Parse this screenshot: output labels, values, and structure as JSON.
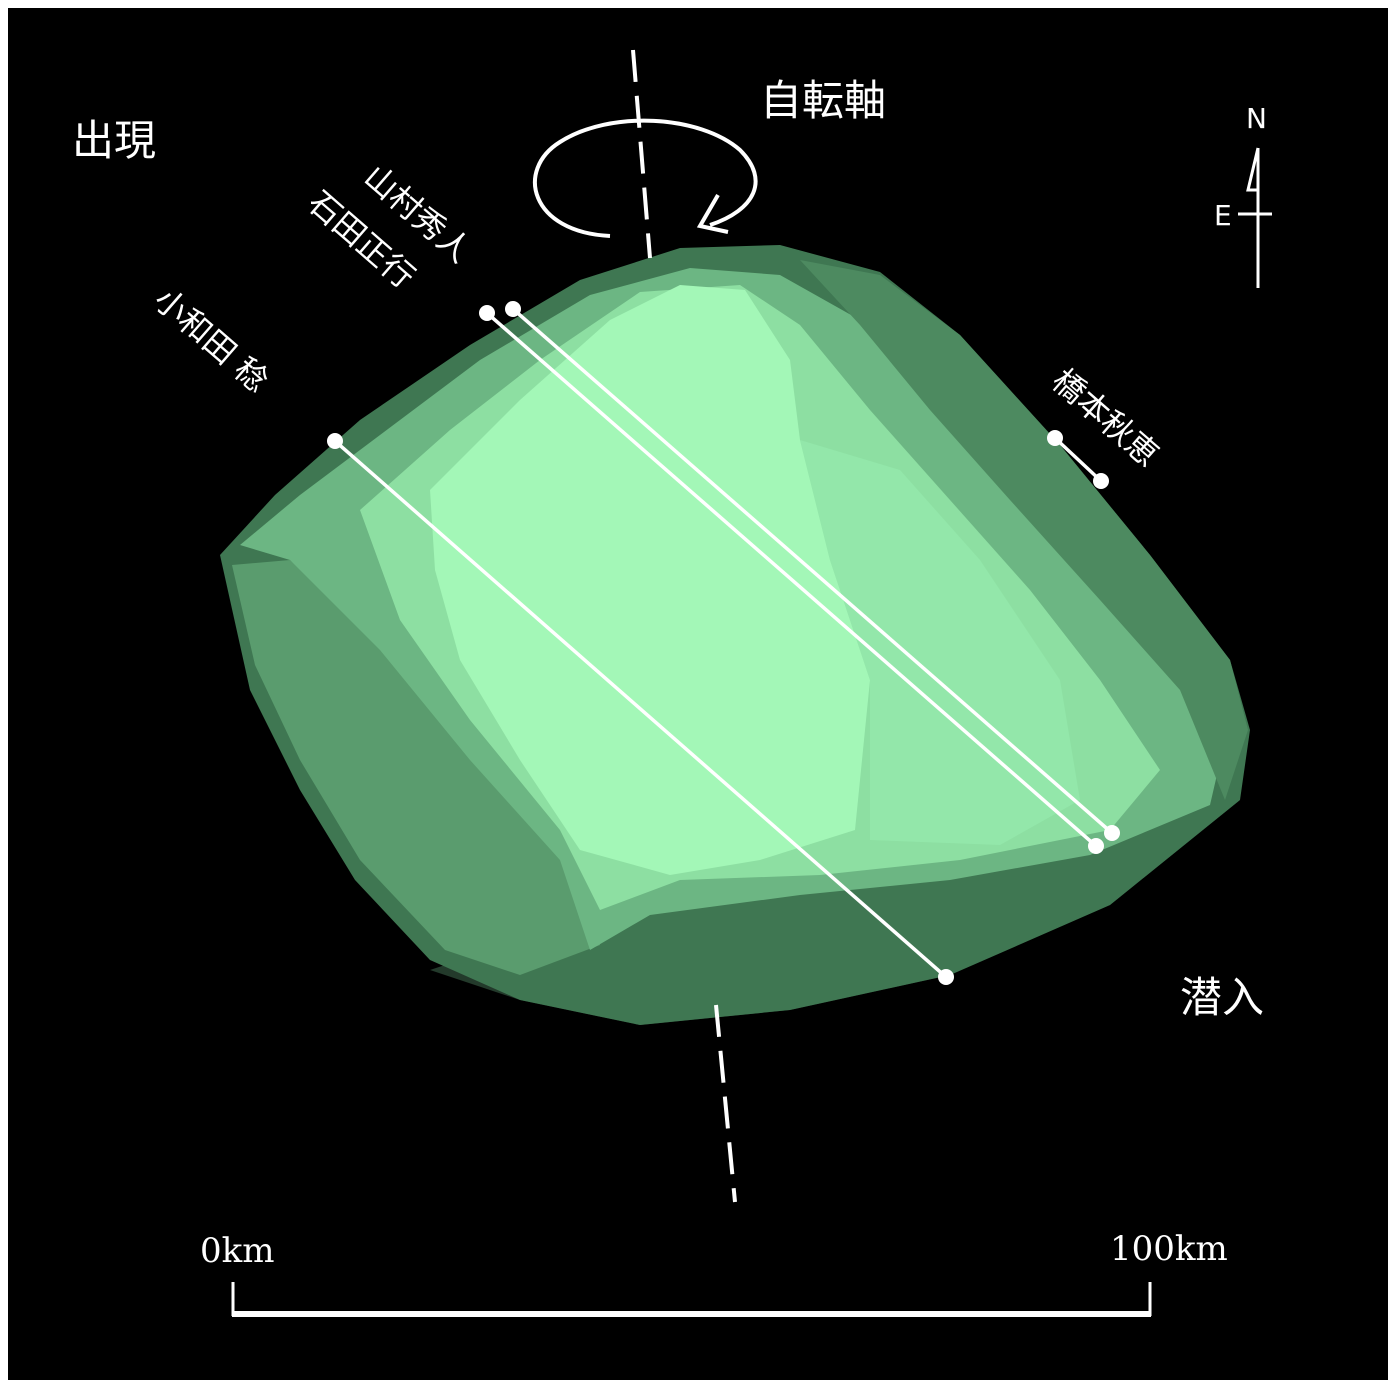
{
  "labels": {
    "appear": "出現",
    "disappear": "潜入",
    "rotation_axis": "自転軸"
  },
  "compass": {
    "north": "N",
    "east": "E"
  },
  "observers": [
    {
      "name": "山村秀人"
    },
    {
      "name": "石田正行"
    },
    {
      "name": "小和田 稔"
    },
    {
      "name": "橋本秋恵"
    }
  ],
  "scale_bar": {
    "start_label": "0km",
    "end_label": "100km"
  },
  "colors": {
    "background": "#000000",
    "asteroid_light": "#a3f7b7",
    "asteroid_mid": "#7fd399",
    "asteroid_dark": "#4a8a5f",
    "chord": "#ffffff"
  }
}
